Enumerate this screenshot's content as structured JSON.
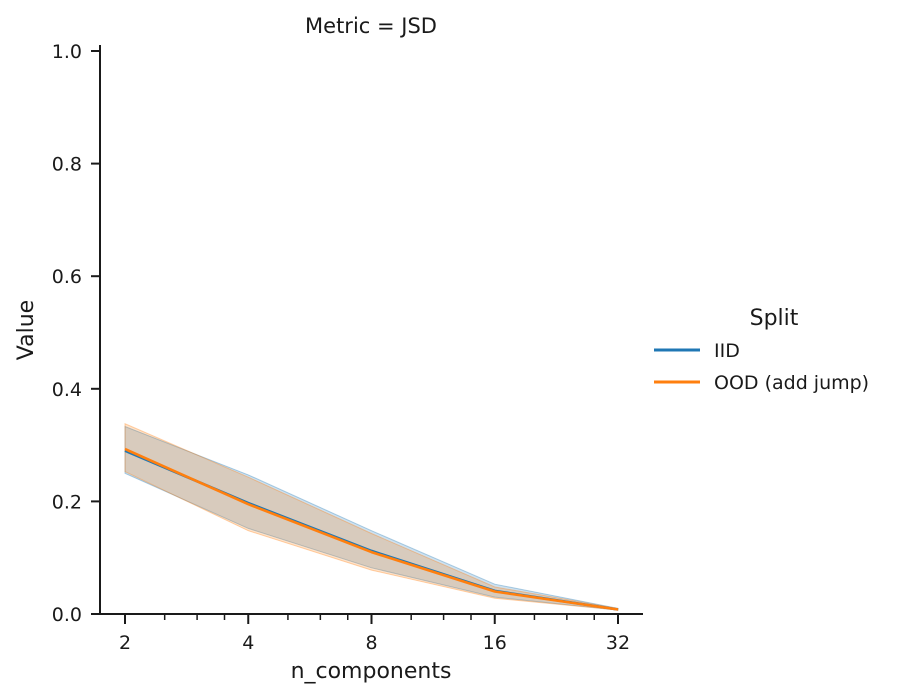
{
  "chart_data": {
    "type": "line",
    "title": "Metric = JSD",
    "xlabel": "n_components",
    "ylabel": "Value",
    "x_scale": "log2",
    "x": [
      2,
      4,
      8,
      16,
      32
    ],
    "x_tick_labels": [
      "2",
      "4",
      "8",
      "16",
      "32"
    ],
    "ylim": [
      0.0,
      1.0
    ],
    "y_ticks": [
      0.0,
      0.2,
      0.4,
      0.6,
      0.8,
      1.0
    ],
    "y_tick_labels": [
      "0.0",
      "0.2",
      "0.4",
      "0.6",
      "0.8",
      "1.0"
    ],
    "grid": false,
    "legend": {
      "title": "Split",
      "placement": "right"
    },
    "series": [
      {
        "name": "IID",
        "color": "#1f77b4",
        "values": [
          0.29,
          0.197,
          0.112,
          0.041,
          0.008
        ],
        "ci_lower": [
          0.25,
          0.152,
          0.082,
          0.03,
          0.007
        ],
        "ci_upper": [
          0.333,
          0.247,
          0.148,
          0.053,
          0.01
        ]
      },
      {
        "name": "OOD (add jump)",
        "color": "#ff7f0e",
        "values": [
          0.293,
          0.195,
          0.11,
          0.04,
          0.008
        ],
        "ci_lower": [
          0.253,
          0.148,
          0.078,
          0.028,
          0.007
        ],
        "ci_upper": [
          0.338,
          0.243,
          0.143,
          0.048,
          0.01
        ]
      }
    ]
  }
}
